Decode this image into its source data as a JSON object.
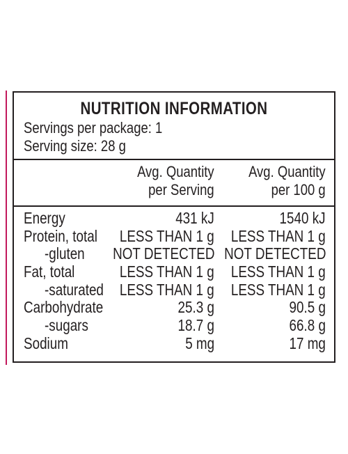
{
  "panel": {
    "title": "NUTRITION INFORMATION",
    "servings_per_package": "Servings per package: 1",
    "serving_size": "Serving size: 28 g"
  },
  "columns": {
    "per_serving": [
      "Avg. Quantity",
      "per Serving"
    ],
    "per_100g": [
      "Avg. Quantity",
      "per 100 g"
    ]
  },
  "rows": [
    {
      "label": "Energy",
      "sub": false,
      "per_serving": "431 kJ",
      "per_100g": "1540 kJ"
    },
    {
      "label": "Protein, total",
      "sub": false,
      "per_serving": "LESS THAN 1 g",
      "per_100g": "LESS THAN 1 g"
    },
    {
      "label": "-gluten",
      "sub": true,
      "per_serving": "NOT DETECTED",
      "per_100g": "NOT DETECTED"
    },
    {
      "label": "Fat, total",
      "sub": false,
      "per_serving": "LESS THAN 1 g",
      "per_100g": "LESS THAN 1 g"
    },
    {
      "label": "-saturated",
      "sub": true,
      "per_serving": "LESS THAN 1 g",
      "per_100g": "LESS THAN 1 g"
    },
    {
      "label": "Carbohydrate",
      "sub": false,
      "per_serving": "25.3 g",
      "per_100g": "90.5 g"
    },
    {
      "label": "-sugars",
      "sub": true,
      "per_serving": "18.7 g",
      "per_100g": "66.8 g"
    },
    {
      "label": "Sodium",
      "sub": false,
      "per_serving": "5 mg",
      "per_100g": "17 mg"
    }
  ],
  "colors": {
    "ink": "#231f20",
    "accent": "#c2185b",
    "background": "#ffffff"
  }
}
